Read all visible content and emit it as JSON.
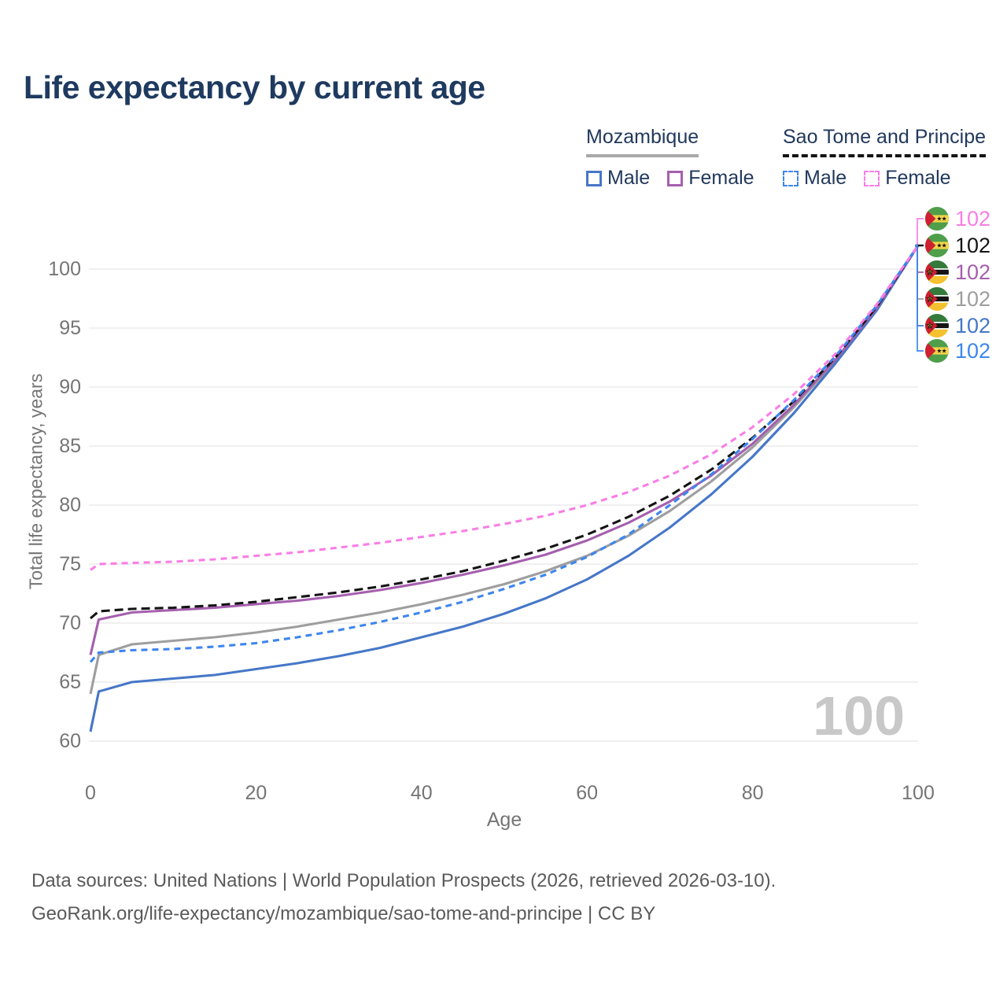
{
  "page": {
    "title": "Life expectancy by current age"
  },
  "legend": {
    "groups": [
      {
        "label": "Mozambique",
        "line_style": "solid",
        "underline_color": "#a9a9a9",
        "items": [
          {
            "label": "Male",
            "color": "#4677c8",
            "dash": false
          },
          {
            "label": "Female",
            "color": "#a55fae",
            "dash": false
          }
        ]
      },
      {
        "label": "Sao Tome and Principe",
        "line_style": "dashed",
        "underline_color": "#141414",
        "items": [
          {
            "label": "Male",
            "color": "#3e86ee",
            "dash": true
          },
          {
            "label": "Female",
            "color": "#f97ee6",
            "dash": true
          }
        ]
      }
    ]
  },
  "chart_data": {
    "type": "line",
    "title": "Life expectancy by current age",
    "xlabel": "Age",
    "ylabel": "Total life expectancy, years",
    "xlim": [
      0,
      100
    ],
    "ylim": [
      58.5,
      103
    ],
    "xticks": [
      0,
      20,
      40,
      60,
      80,
      100
    ],
    "yticks": [
      60,
      65,
      70,
      75,
      80,
      85,
      90,
      95,
      100
    ],
    "grid": "horizontal",
    "legend_position": "top-right",
    "x": [
      0,
      1,
      5,
      10,
      15,
      20,
      25,
      30,
      35,
      40,
      45,
      50,
      55,
      60,
      65,
      70,
      75,
      80,
      85,
      90,
      95,
      100
    ],
    "series": [
      {
        "name": "Sao Tome and Principe Female",
        "country": "Sao Tome and Principe",
        "sex": "Female",
        "color": "#f97ee6",
        "dash": true,
        "end_label": "102",
        "flag": "sao-tome-and-principe",
        "values": [
          74.5,
          75.0,
          75.1,
          75.2,
          75.4,
          75.7,
          76.0,
          76.4,
          76.8,
          77.3,
          77.8,
          78.4,
          79.1,
          80.0,
          81.1,
          82.5,
          84.3,
          86.6,
          89.4,
          92.8,
          97.0,
          102
        ]
      },
      {
        "name": "Sao Tome and Principe Both sexes",
        "country": "Sao Tome and Principe",
        "sex": "Both",
        "color": "#141414",
        "dash": true,
        "end_label": "102",
        "flag": "sao-tome-and-principe",
        "values": [
          70.4,
          71.0,
          71.2,
          71.3,
          71.5,
          71.8,
          72.2,
          72.6,
          73.1,
          73.7,
          74.4,
          75.3,
          76.3,
          77.5,
          79.0,
          80.8,
          83.0,
          85.7,
          88.8,
          92.5,
          96.8,
          102
        ]
      },
      {
        "name": "Mozambique Female",
        "country": "Mozambique",
        "sex": "Female",
        "color": "#a55fae",
        "dash": false,
        "end_label": "102",
        "flag": "mozambique",
        "values": [
          67.3,
          70.3,
          70.9,
          71.1,
          71.3,
          71.6,
          71.9,
          72.3,
          72.8,
          73.4,
          74.1,
          74.9,
          75.8,
          77.0,
          78.5,
          80.3,
          82.5,
          85.2,
          88.5,
          92.3,
          96.7,
          102
        ]
      },
      {
        "name": "Mozambique Both sexes",
        "country": "Mozambique",
        "sex": "Both",
        "color": "#9e9e9e",
        "dash": false,
        "end_label": "102",
        "flag": "mozambique",
        "values": [
          64.0,
          67.3,
          68.2,
          68.5,
          68.8,
          69.2,
          69.7,
          70.3,
          70.9,
          71.6,
          72.4,
          73.3,
          74.4,
          75.7,
          77.4,
          79.5,
          82.0,
          84.9,
          88.3,
          92.2,
          96.7,
          102
        ]
      },
      {
        "name": "Mozambique Male",
        "country": "Mozambique",
        "sex": "Male",
        "color": "#4677c8",
        "dash": false,
        "end_label": "102",
        "flag": "mozambique",
        "values": [
          60.8,
          64.2,
          65.0,
          65.3,
          65.6,
          66.1,
          66.6,
          67.2,
          67.9,
          68.8,
          69.7,
          70.8,
          72.1,
          73.7,
          75.7,
          78.1,
          80.9,
          84.1,
          87.8,
          92.0,
          96.5,
          102
        ]
      },
      {
        "name": "Sao Tome and Principe Male",
        "country": "Sao Tome and Principe",
        "sex": "Male",
        "color": "#3e86ee",
        "dash": true,
        "end_label": "102",
        "flag": "sao-tome-and-principe",
        "values": [
          66.7,
          67.5,
          67.7,
          67.8,
          68.0,
          68.3,
          68.8,
          69.4,
          70.1,
          70.9,
          71.8,
          72.9,
          74.1,
          75.6,
          77.5,
          80.0,
          82.6,
          85.6,
          88.9,
          92.6,
          96.9,
          102
        ]
      }
    ]
  },
  "annotations": {
    "age_watermark": "100"
  },
  "footer": {
    "line1": "Data sources: United Nations | World Population Prospects (2026, retrieved 2026-03-10).",
    "line2": "GeoRank.org/life-expectancy/mozambique/sao-tome-and-principe | CC BY"
  }
}
